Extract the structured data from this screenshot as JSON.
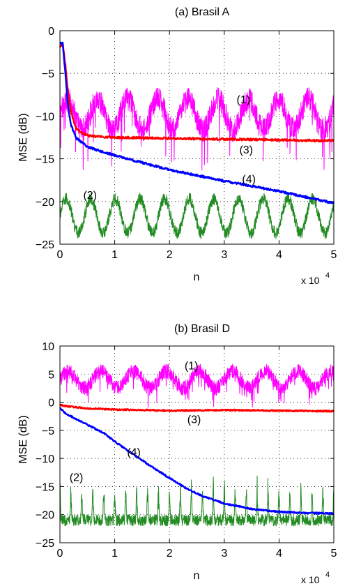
{
  "chart_data": [
    {
      "type": "line",
      "title": "(a) Brasil A",
      "xlabel": "n",
      "ylabel": "MSE (dB)",
      "x_multiplier": "x 10",
      "x_multiplier_exp": "4",
      "xlim": [
        0,
        5
      ],
      "ylim": [
        -25,
        0
      ],
      "xticks": [
        0,
        1,
        2,
        3,
        4,
        5
      ],
      "yticks": [
        0,
        -5,
        -10,
        -15,
        -20,
        -25
      ],
      "grid": true,
      "series": [
        {
          "label": "(1)",
          "color": "#ff00ff",
          "kind": "periodic",
          "base": -9.8,
          "amp": 1.8,
          "period": 0.55,
          "noise": 1.4,
          "dips": -4.5,
          "start": -1.5
        },
        {
          "label": "(2)",
          "color": "#228b22",
          "kind": "periodic",
          "base": -21.7,
          "amp": 2.0,
          "period": 0.45,
          "noise": 0.7,
          "dips": 0,
          "start": 0
        },
        {
          "label": "(3)",
          "color": "#ff0000",
          "kind": "points",
          "x": [
            0,
            0.05,
            0.1,
            0.15,
            0.2,
            0.3,
            0.5,
            1,
            2,
            3,
            4,
            5
          ],
          "y": [
            -2,
            -1.5,
            -4,
            -7.5,
            -9.5,
            -11.5,
            -12.3,
            -12.5,
            -12.6,
            -12.7,
            -12.8,
            -12.9
          ]
        },
        {
          "label": "(4)",
          "color": "#0000ff",
          "kind": "points",
          "x": [
            0,
            0.05,
            0.1,
            0.15,
            0.2,
            0.3,
            0.5,
            1,
            2,
            3,
            4,
            5
          ],
          "y": [
            -1.5,
            -1.5,
            -5,
            -9,
            -11,
            -12.6,
            -13.6,
            -14.6,
            -16.3,
            -17.6,
            -18.8,
            -20.2
          ]
        }
      ],
      "annotations": [
        {
          "text": "(1)",
          "x": 3.35,
          "y": -8.0
        },
        {
          "text": "(2)",
          "x": 0.55,
          "y": -19.2
        },
        {
          "text": "(3)",
          "x": 3.4,
          "y": -13.9
        },
        {
          "text": "(4)",
          "x": 3.45,
          "y": -17.3
        }
      ]
    },
    {
      "type": "line",
      "title": "(b) Brasil D",
      "xlabel": "n",
      "ylabel": "MSE (dB)",
      "x_multiplier": "x 10",
      "x_multiplier_exp": "4",
      "xlim": [
        0,
        5
      ],
      "ylim": [
        -25,
        10
      ],
      "xticks": [
        0,
        1,
        2,
        3,
        4,
        5
      ],
      "yticks": [
        10,
        5,
        0,
        -5,
        -10,
        -15,
        -20,
        -25
      ],
      "grid": true,
      "series": [
        {
          "label": "(1)",
          "color": "#ff00ff",
          "kind": "periodic",
          "base": 4.0,
          "amp": 1.5,
          "period": 0.6,
          "noise": 1.3,
          "dips": -3.0,
          "start": 3
        },
        {
          "label": "(2)",
          "color": "#228b22",
          "kind": "spiky",
          "base": -21.0,
          "amp": 6.5,
          "period": 0.2,
          "noise": 1.0,
          "dips": 0,
          "start": 0
        },
        {
          "label": "(3)",
          "color": "#ff0000",
          "kind": "points",
          "x": [
            0,
            0.2,
            0.5,
            1,
            1.5,
            2,
            3,
            4,
            5
          ],
          "y": [
            -0.5,
            -0.8,
            -1.1,
            -1.3,
            -1.4,
            -1.5,
            -1.4,
            -1.5,
            -1.6
          ]
        },
        {
          "label": "(4)",
          "color": "#0000ff",
          "kind": "points",
          "x": [
            0,
            0.1,
            0.3,
            0.5,
            0.8,
            1,
            1.3,
            1.6,
            2,
            2.3,
            2.6,
            3,
            3.5,
            4,
            4.5,
            5
          ],
          "y": [
            -1,
            -2,
            -3,
            -4,
            -5.5,
            -7,
            -9,
            -11,
            -13.5,
            -15.3,
            -16.7,
            -18,
            -19,
            -19.5,
            -19.7,
            -19.8
          ]
        }
      ],
      "annotations": [
        {
          "text": "(1)",
          "x": 2.4,
          "y": 6.6
        },
        {
          "text": "(2)",
          "x": 0.3,
          "y": -13.3
        },
        {
          "text": "(3)",
          "x": 2.45,
          "y": -3.0
        },
        {
          "text": "(4)",
          "x": 1.35,
          "y": -8.8
        }
      ]
    }
  ]
}
